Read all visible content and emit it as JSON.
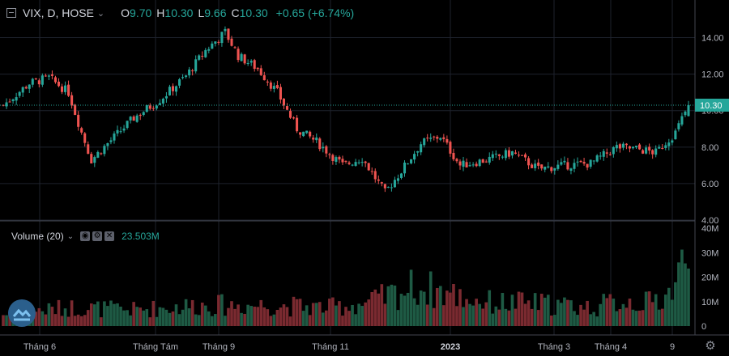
{
  "header": {
    "symbol": "VIX, D, HOSE",
    "open_label": "O",
    "open": "9.70",
    "high_label": "H",
    "high": "10.30",
    "low_label": "L",
    "low": "9.66",
    "close_label": "C",
    "close": "10.30",
    "change": "+0.65 (+6.74%)"
  },
  "volume_panel": {
    "label": "Volume (20)",
    "value": "23.503M"
  },
  "colors": {
    "up": "#26a69a",
    "down": "#ef5350",
    "vol_up": "#1e5a44",
    "vol_down": "#7a2a30",
    "background": "#000000",
    "grid": "#1e222d"
  },
  "chart_data": {
    "type": "candlestick",
    "symbol": "VIX",
    "interval": "D",
    "exchange": "HOSE",
    "x_tick_labels": [
      "Tháng 6",
      "Tháng Tám",
      "Tháng 9",
      "Tháng 11",
      "2023",
      "Tháng 3",
      "Tháng 4",
      "9"
    ],
    "price_axis": {
      "ticks": [
        "14.00",
        "12.00",
        "10.00",
        "8.00",
        "6.00",
        "4.00"
      ],
      "range": [
        4.0,
        15.0
      ]
    },
    "last_price": "10.30",
    "volume_axis": {
      "ticks": [
        "40M",
        "30M",
        "20M",
        "10M",
        "0"
      ],
      "range": [
        0,
        40
      ]
    },
    "price_path": [
      [
        0,
        10.3
      ],
      [
        8,
        11.5
      ],
      [
        14,
        11.8
      ],
      [
        20,
        11.0
      ],
      [
        24,
        8.8
      ],
      [
        27,
        7.3
      ],
      [
        32,
        8.2
      ],
      [
        40,
        9.6
      ],
      [
        48,
        10.6
      ],
      [
        56,
        11.9
      ],
      [
        62,
        13.3
      ],
      [
        68,
        14.3
      ],
      [
        72,
        13.0
      ],
      [
        78,
        12.3
      ],
      [
        84,
        11.0
      ],
      [
        90,
        9.0
      ],
      [
        96,
        8.3
      ],
      [
        104,
        7.0
      ],
      [
        110,
        7.4
      ],
      [
        117,
        5.5
      ],
      [
        122,
        6.7
      ],
      [
        128,
        8.2
      ],
      [
        134,
        8.6
      ],
      [
        140,
        7.0
      ],
      [
        148,
        7.3
      ],
      [
        156,
        7.7
      ],
      [
        164,
        6.8
      ],
      [
        172,
        7.0
      ],
      [
        180,
        7.1
      ],
      [
        188,
        8.0
      ],
      [
        194,
        7.9
      ],
      [
        200,
        7.7
      ],
      [
        206,
        8.8
      ],
      [
        210,
        10.3
      ]
    ],
    "volume_path": [
      [
        0,
        5.0
      ],
      [
        20,
        8.0
      ],
      [
        40,
        7.0
      ],
      [
        60,
        9.0
      ],
      [
        80,
        9.0
      ],
      [
        100,
        8.0
      ],
      [
        112,
        10.0
      ],
      [
        120,
        14.0
      ],
      [
        126,
        17.0
      ],
      [
        134,
        15.0
      ],
      [
        142,
        12.0
      ],
      [
        150,
        10.0
      ],
      [
        160,
        10.0
      ],
      [
        172,
        9.0
      ],
      [
        180,
        8.0
      ],
      [
        190,
        11.0
      ],
      [
        198,
        10.0
      ],
      [
        204,
        14.0
      ],
      [
        208,
        25.0
      ],
      [
        210,
        22.0
      ]
    ]
  }
}
